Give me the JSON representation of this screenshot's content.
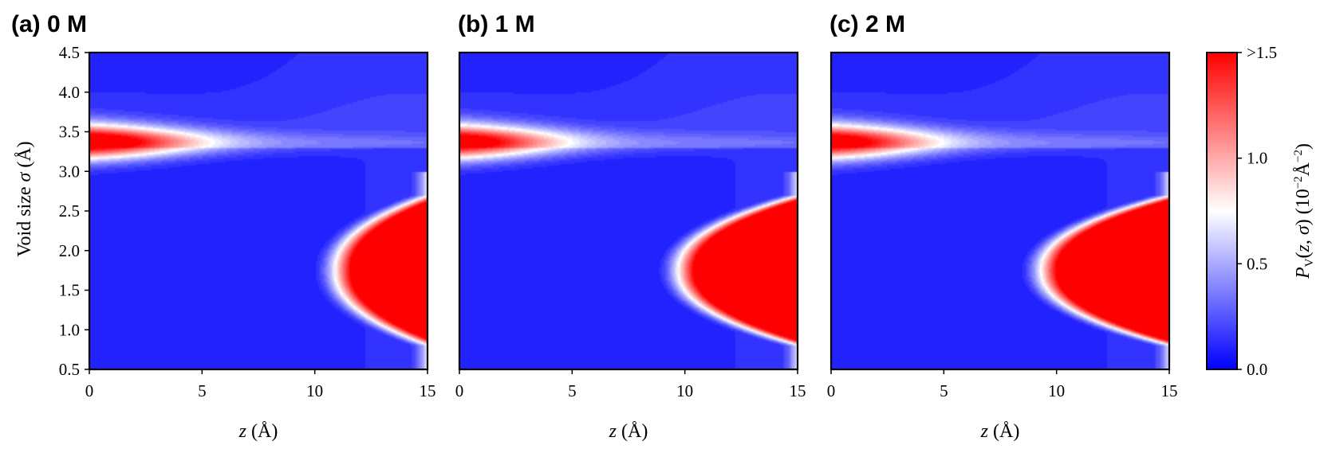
{
  "chart_data": {
    "type": "heatmap",
    "shared_ylabel": "Void size σ (Å)",
    "colorbar": {
      "label": "P_V(z,σ) (10^-2 Å^-2)",
      "range": [
        0,
        1.5
      ],
      "ticks": [
        0.0,
        0.5,
        1.0,
        1.5
      ],
      "tick_labels": [
        "0.0",
        "0.5",
        "1.0",
        ">1.5"
      ],
      "colormap": [
        "#0000ff",
        "#ffffff",
        "#ff0000"
      ]
    },
    "xlim": [
      0,
      15
    ],
    "ylim": [
      0.5,
      4.5
    ],
    "xticks": [
      0,
      5,
      10,
      15
    ],
    "xtick_labels": [
      "0",
      "5",
      "10",
      "15"
    ],
    "yticks": [
      0.5,
      1.0,
      1.5,
      2.0,
      2.5,
      3.0,
      3.5,
      4.0,
      4.5
    ],
    "ytick_labels": [
      "0.5",
      "1.0",
      "1.5",
      "2.0",
      "2.5",
      "3.0",
      "3.5",
      "4.0",
      "4.5"
    ],
    "panels": [
      {
        "label": "(a) 0 M",
        "xlabel": "z (Å)",
        "features": {
          "upper_band": {
            "sigma": 3.37,
            "max_value": 1.2,
            "extent_z": 6.0
          },
          "lower_blob": {
            "sigma_center": 1.75,
            "z_edge_at_center": 10.9,
            "max_value": 1.5,
            "sigma_range": [
              0.8,
              2.7
            ]
          }
        }
      },
      {
        "label": "(b) 1 M",
        "xlabel": "z (Å)",
        "features": {
          "upper_band": {
            "sigma": 3.37,
            "max_value": 1.1,
            "extent_z": 5.5
          },
          "lower_blob": {
            "sigma_center": 1.75,
            "z_edge_at_center": 9.7,
            "max_value": 1.5,
            "sigma_range": [
              0.8,
              2.7
            ]
          }
        }
      },
      {
        "label": "(c) 2 M",
        "xlabel": "z (Å)",
        "features": {
          "upper_band": {
            "sigma": 3.37,
            "max_value": 1.1,
            "extent_z": 5.5
          },
          "lower_blob": {
            "sigma_center": 1.75,
            "z_edge_at_center": 9.3,
            "max_value": 1.5,
            "sigma_range": [
              0.8,
              2.7
            ]
          }
        }
      }
    ]
  }
}
